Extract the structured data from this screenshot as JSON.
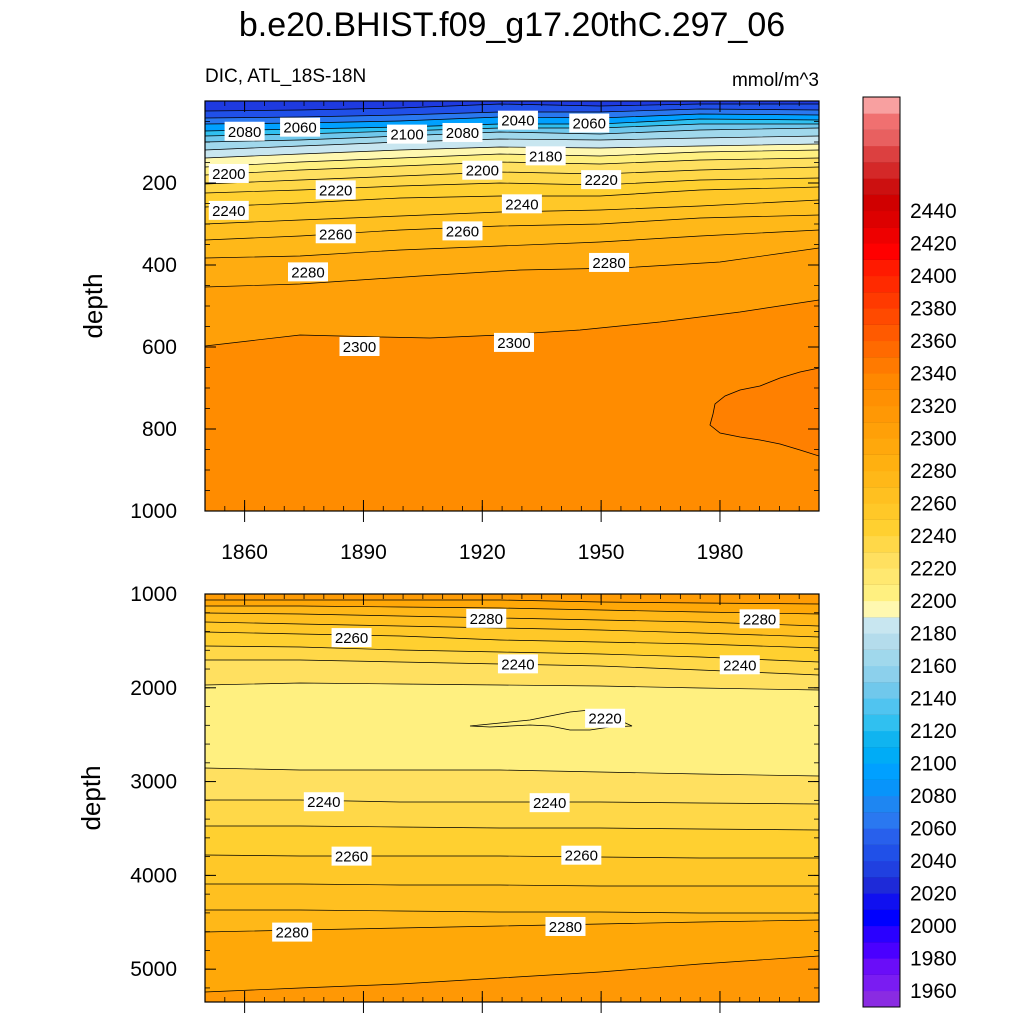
{
  "title": "b.e20.BHIST.f09_g17.20thC.297_06",
  "chart_data": {
    "type": "contour",
    "variable": "DIC, ATL_18S-18N",
    "units": "mmol/m^3",
    "x_ticks": [
      "1860",
      "1890",
      "1920",
      "1950",
      "1980"
    ],
    "xlim": [
      1850,
      2005
    ],
    "colorbar": {
      "levels": [
        1960,
        1980,
        2000,
        2020,
        2040,
        2060,
        2080,
        2100,
        2120,
        2140,
        2160,
        2180,
        2200,
        2220,
        2240,
        2260,
        2280,
        2300,
        2320,
        2340,
        2360,
        2380,
        2400,
        2420,
        2440
      ],
      "labels": [
        "1960",
        "1980",
        "2000",
        "2020",
        "2040",
        "2060",
        "2080",
        "2100",
        "2120",
        "2140",
        "2160",
        "2180",
        "2200",
        "2220",
        "2240",
        "2260",
        "2280",
        "2300",
        "2320",
        "2340",
        "2360",
        "2380",
        "2400",
        "2420",
        "2440"
      ],
      "interval": 10,
      "colors": [
        "#8a2be2",
        "#7a1cf2",
        "#6a0df8",
        "#4a00ff",
        "#2a00ff",
        "#0000ff",
        "#1010f0",
        "#1e2ad8",
        "#2040e0",
        "#2050e8",
        "#2860ec",
        "#2a78f0",
        "#1e86f2",
        "#0894fa",
        "#00a0ff",
        "#00acf6",
        "#10b4f0",
        "#30c0f0",
        "#50c4f0",
        "#70c8ec",
        "#8cd0ec",
        "#a0d8ec",
        "#b4dcec",
        "#c8e6f0",
        "#fff8b0",
        "#fff080",
        "#ffe870",
        "#ffe060",
        "#ffd848",
        "#ffd030",
        "#ffc828",
        "#ffc020",
        "#ffb818",
        "#ffb010",
        "#ffa80c",
        "#ffa008",
        "#ff9805",
        "#ff9002",
        "#ff8800",
        "#ff7a00",
        "#ff6a00",
        "#ff5a00",
        "#ff4a00",
        "#ff3a00",
        "#ff2a00",
        "#ff1a00",
        "#ff0000",
        "#ee0000",
        "#dd0000",
        "#d00000",
        "#cc1010",
        "#d42828",
        "#dc4040",
        "#e86060",
        "#f07070",
        "#f8a0a0"
      ]
    },
    "panels": [
      {
        "ylabel": "depth",
        "ylim": [
          0,
          1000
        ],
        "y_ticks": [
          "200",
          "400",
          "600",
          "800",
          "1000"
        ],
        "contour_labels": [
          {
            "text": "2080",
            "year": 1860,
            "depth": 75
          },
          {
            "text": "2060",
            "year": 1874,
            "depth": 65
          },
          {
            "text": "2100",
            "year": 1901,
            "depth": 82
          },
          {
            "text": "2080",
            "year": 1915,
            "depth": 78
          },
          {
            "text": "2040",
            "year": 1929,
            "depth": 48
          },
          {
            "text": "2060",
            "year": 1947,
            "depth": 55
          },
          {
            "text": "2180",
            "year": 1936,
            "depth": 135
          },
          {
            "text": "2200",
            "year": 1856,
            "depth": 178
          },
          {
            "text": "2200",
            "year": 1920,
            "depth": 170
          },
          {
            "text": "2220",
            "year": 1883,
            "depth": 218
          },
          {
            "text": "2220",
            "year": 1950,
            "depth": 193
          },
          {
            "text": "2240",
            "year": 1856,
            "depth": 268
          },
          {
            "text": "2240",
            "year": 1930,
            "depth": 252
          },
          {
            "text": "2260",
            "year": 1883,
            "depth": 325
          },
          {
            "text": "2260",
            "year": 1915,
            "depth": 318
          },
          {
            "text": "2280",
            "year": 1876,
            "depth": 418
          },
          {
            "text": "2280",
            "year": 1952,
            "depth": 395
          },
          {
            "text": "2300",
            "year": 1889,
            "depth": 600
          },
          {
            "text": "2300",
            "year": 1928,
            "depth": 590
          }
        ]
      },
      {
        "ylabel": "depth",
        "ylim": [
          1000,
          5350
        ],
        "y_ticks": [
          "1000",
          "2000",
          "3000",
          "4000",
          "5000"
        ],
        "contour_labels": [
          {
            "text": "2280",
            "year": 1921,
            "depth": 1265
          },
          {
            "text": "2280",
            "year": 1990,
            "depth": 1270
          },
          {
            "text": "2260",
            "year": 1887,
            "depth": 1470
          },
          {
            "text": "2240",
            "year": 1929,
            "depth": 1750
          },
          {
            "text": "2240",
            "year": 1985,
            "depth": 1760
          },
          {
            "text": "2220",
            "year": 1951,
            "depth": 2330
          },
          {
            "text": "2240",
            "year": 1880,
            "depth": 3220
          },
          {
            "text": "2240",
            "year": 1937,
            "depth": 3230
          },
          {
            "text": "2260",
            "year": 1887,
            "depth": 3800
          },
          {
            "text": "2260",
            "year": 1945,
            "depth": 3790
          },
          {
            "text": "2280",
            "year": 1872,
            "depth": 4610
          },
          {
            "text": "2280",
            "year": 1941,
            "depth": 4550
          }
        ]
      }
    ]
  }
}
